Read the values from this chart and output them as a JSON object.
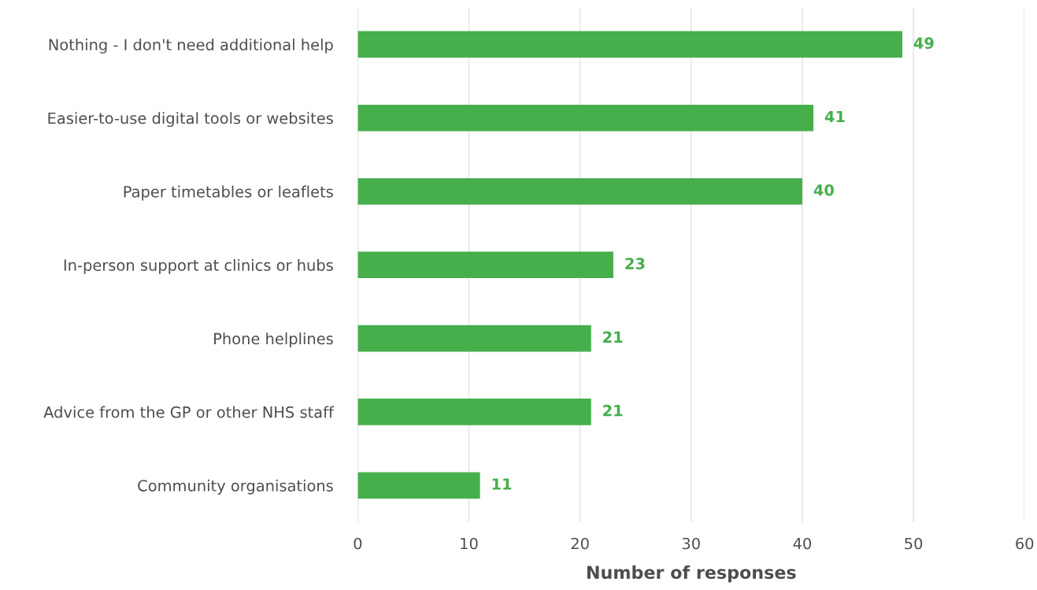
{
  "chart_data": {
    "type": "bar",
    "orientation": "horizontal",
    "xlabel": "Number of responses",
    "categories": [
      "Nothing - I don't need additional help",
      "Easier-to-use digital tools or websites",
      "Paper timetables or leaflets",
      "In-person support at clinics or hubs",
      "Phone helplines",
      "Advice from the GP or other NHS staff",
      "Community organisations"
    ],
    "values": [
      49,
      41,
      40,
      23,
      21,
      21,
      11
    ],
    "color": "#46ae4b",
    "xlim": [
      0,
      60
    ],
    "xticks": [
      0,
      10,
      20,
      30,
      40,
      50,
      60
    ],
    "grid": "x",
    "data_labels": true
  }
}
